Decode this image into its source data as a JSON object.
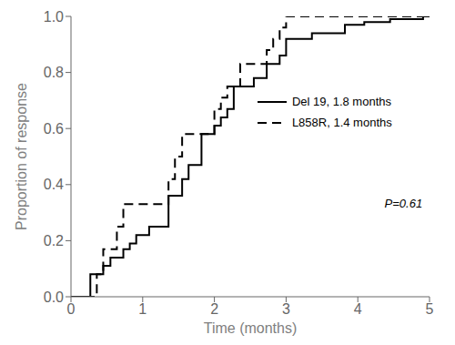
{
  "chart_data": {
    "type": "line",
    "xlabel": "Time (months)",
    "ylabel": "Proportion of response",
    "xlim": [
      0,
      5
    ],
    "ylim": [
      0.0,
      1.0
    ],
    "xticks": [
      0,
      1,
      2,
      3,
      4,
      5
    ],
    "yticks": [
      {
        "value": 0.0,
        "label": "0.0"
      },
      0.2,
      0.4,
      0.6,
      0.8,
      {
        "value": 1.0,
        "label": "1.0"
      }
    ],
    "grid": false,
    "legend": "right",
    "annotations": [
      "P=0.61"
    ],
    "series": [
      {
        "name": "Del 19, 1.8 months",
        "color": "#000000",
        "line_style": "solid",
        "type": "step",
        "x": [
          0,
          0.27,
          0.45,
          0.55,
          0.73,
          0.82,
          0.91,
          1.09,
          1.36,
          1.55,
          1.64,
          1.82,
          2.0,
          2.09,
          2.18,
          2.27,
          2.55,
          2.73,
          2.91,
          3.0,
          3.36,
          3.82,
          4.09,
          4.45,
          4.91,
          5.0
        ],
        "values": [
          0,
          0.08,
          0.11,
          0.14,
          0.17,
          0.19,
          0.22,
          0.25,
          0.36,
          0.42,
          0.47,
          0.58,
          0.61,
          0.64,
          0.67,
          0.75,
          0.78,
          0.83,
          0.86,
          0.92,
          0.94,
          0.97,
          0.98,
          0.99,
          1.0,
          1.0
        ]
      },
      {
        "name": "L858R, 1.4 months",
        "color": "#000000",
        "line_style": "dashed",
        "type": "step",
        "x": [
          0,
          0.36,
          0.45,
          0.64,
          0.73,
          1.36,
          1.45,
          1.55,
          2.0,
          2.09,
          2.18,
          2.36,
          2.73,
          2.82,
          2.91,
          3.0,
          5.0
        ],
        "values": [
          0,
          0.08,
          0.17,
          0.25,
          0.33,
          0.42,
          0.5,
          0.58,
          0.67,
          0.71,
          0.75,
          0.83,
          0.88,
          0.92,
          0.96,
          1.0,
          1.0
        ]
      }
    ]
  }
}
